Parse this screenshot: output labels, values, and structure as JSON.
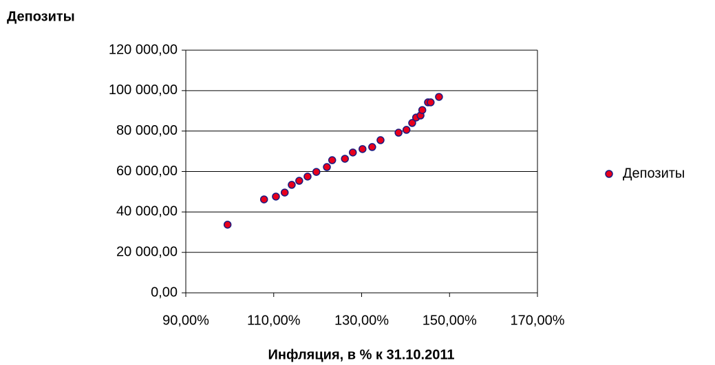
{
  "chart_data": {
    "type": "scatter",
    "title": "Депозиты",
    "x_label": "Инфляция, в  % к 31.10.2011",
    "series": [
      {
        "name": "Депозиты",
        "color": "#e8001c",
        "edge_color": "#1a1a80",
        "x": [
          99.5,
          107.8,
          110.5,
          112.5,
          114.1,
          115.8,
          117.7,
          119.7,
          122.1,
          123.3,
          126.2,
          128.0,
          130.2,
          132.4,
          134.3,
          138.4,
          140.2,
          141.5,
          142.4,
          143.4,
          143.8,
          145.1,
          145.7,
          147.6
        ],
        "values": [
          33700,
          46200,
          47600,
          49600,
          53400,
          55400,
          57500,
          59800,
          62200,
          65600,
          66300,
          69400,
          71100,
          72100,
          75500,
          79200,
          80600,
          84000,
          86700,
          87700,
          90400,
          94200,
          94200,
          96900
        ]
      }
    ],
    "xlim": [
      90,
      170
    ],
    "xticks": [
      {
        "value": 90,
        "label": "90,00%"
      },
      {
        "value": 110,
        "label": "110,00%"
      },
      {
        "value": 130,
        "label": "130,00%"
      },
      {
        "value": 150,
        "label": "150,00%"
      },
      {
        "value": 170,
        "label": "170,00%"
      }
    ],
    "ylim": [
      0,
      120000
    ],
    "yticks": [
      {
        "value": 0,
        "label": "0,00"
      },
      {
        "value": 20000,
        "label": "20 000,00"
      },
      {
        "value": 40000,
        "label": "40 000,00"
      },
      {
        "value": 60000,
        "label": "60 000,00"
      },
      {
        "value": 80000,
        "label": "80 000,00"
      },
      {
        "value": 100000,
        "label": "100 000,00"
      },
      {
        "value": 120000,
        "label": "120 000,00"
      }
    ],
    "grid": true,
    "legend": "right"
  }
}
